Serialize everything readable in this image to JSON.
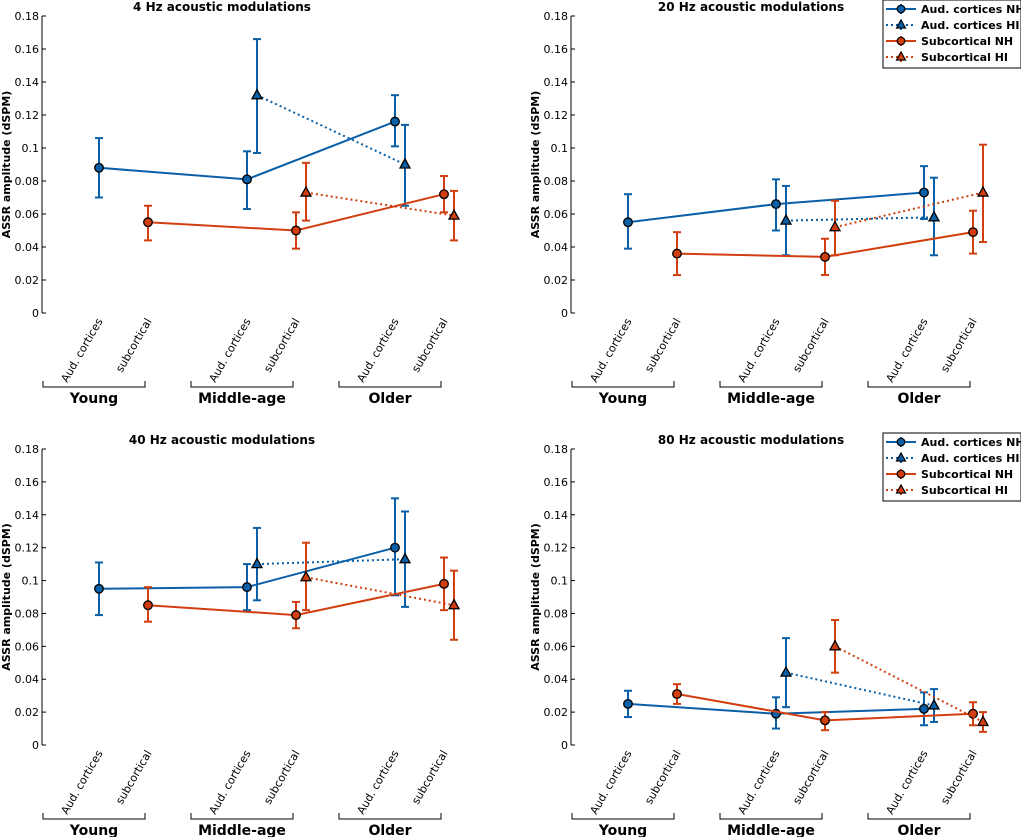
{
  "colors": {
    "nh_hi_aud": "#0a5fa6",
    "subcortical": "#d13e10",
    "axis": "#000000"
  },
  "category_labels": [
    "Aud. cortices",
    "subcortical"
  ],
  "group_labels": [
    "Young",
    "Middle-age",
    "Older"
  ],
  "legend_entries": [
    "Aud. cortices NH",
    "Aud. cortices HI",
    "Subcortical NH",
    "Subcortical HI"
  ],
  "ylabel": "ASSR amplitude (dSPM)",
  "chart_data": [
    {
      "type": "line",
      "title": "4 Hz acoustic modulations",
      "ylabel": "ASSR amplitude (dSPM)",
      "ylim": [
        0,
        0.18
      ],
      "yticks": [
        "0",
        "0.02",
        "0.04",
        "0.06",
        "0.08",
        "0.1",
        "0.12",
        "0.14",
        "0.16",
        "0.18"
      ],
      "groups": [
        "Young",
        "Middle-age",
        "Older"
      ],
      "legend": false,
      "series": [
        {
          "name": "Aud. cortices NH",
          "values": [
            0.088,
            0.081,
            0.116
          ],
          "err_low": [
            0.07,
            0.063,
            0.101
          ],
          "err_high": [
            0.106,
            0.098,
            0.132
          ]
        },
        {
          "name": "Aud. cortices HI",
          "values": [
            null,
            0.132,
            0.09
          ],
          "err_low": [
            null,
            0.097,
            0.065
          ],
          "err_high": [
            null,
            0.166,
            0.114
          ]
        },
        {
          "name": "Subcortical NH",
          "values": [
            0.055,
            0.05,
            0.072
          ],
          "err_low": [
            0.044,
            0.039,
            0.061
          ],
          "err_high": [
            0.065,
            0.061,
            0.083
          ]
        },
        {
          "name": "Subcortical HI",
          "values": [
            null,
            0.073,
            0.059
          ],
          "err_low": [
            null,
            0.056,
            0.044
          ],
          "err_high": [
            null,
            0.091,
            0.074
          ]
        }
      ]
    },
    {
      "type": "line",
      "title": "20 Hz acoustic modulations",
      "ylabel": "ASSR amplitude (dSPM)",
      "ylim": [
        0,
        0.18
      ],
      "yticks": [
        "0",
        "0.02",
        "0.04",
        "0.06",
        "0.08",
        "0.1",
        "0.12",
        "0.14",
        "0.16",
        "0.18"
      ],
      "groups": [
        "Young",
        "Middle-age",
        "Older"
      ],
      "legend": true,
      "series": [
        {
          "name": "Aud. cortices NH",
          "values": [
            0.055,
            0.066,
            0.073
          ],
          "err_low": [
            0.039,
            0.05,
            0.057
          ],
          "err_high": [
            0.072,
            0.081,
            0.089
          ]
        },
        {
          "name": "Aud. cortices HI",
          "values": [
            null,
            0.056,
            0.058
          ],
          "err_low": [
            null,
            0.035,
            0.035
          ],
          "err_high": [
            null,
            0.077,
            0.082
          ]
        },
        {
          "name": "Subcortical NH",
          "values": [
            0.036,
            0.034,
            0.049
          ],
          "err_low": [
            0.023,
            0.023,
            0.036
          ],
          "err_high": [
            0.049,
            0.045,
            0.062
          ]
        },
        {
          "name": "Subcortical HI",
          "values": [
            null,
            0.052,
            0.073
          ],
          "err_low": [
            null,
            0.035,
            0.043
          ],
          "err_high": [
            null,
            0.068,
            0.102
          ]
        }
      ]
    },
    {
      "type": "line",
      "title": "40 Hz acoustic modulations",
      "ylabel": "ASSR amplitude (dSPM)",
      "ylim": [
        0,
        0.18
      ],
      "yticks": [
        "0",
        "0.02",
        "0.04",
        "0.06",
        "0.08",
        "0.1",
        "0.12",
        "0.14",
        "0.16",
        "0.18"
      ],
      "groups": [
        "Young",
        "Middle-age",
        "Older"
      ],
      "legend": false,
      "series": [
        {
          "name": "Aud. cortices NH",
          "values": [
            0.095,
            0.096,
            0.12
          ],
          "err_low": [
            0.079,
            0.082,
            0.091
          ],
          "err_high": [
            0.111,
            0.11,
            0.15
          ]
        },
        {
          "name": "Aud. cortices HI",
          "values": [
            null,
            0.11,
            0.113
          ],
          "err_low": [
            null,
            0.088,
            0.084
          ],
          "err_high": [
            null,
            0.132,
            0.142
          ]
        },
        {
          "name": "Subcortical NH",
          "values": [
            0.085,
            0.079,
            0.098
          ],
          "err_low": [
            0.075,
            0.071,
            0.082
          ],
          "err_high": [
            0.096,
            0.087,
            0.114
          ]
        },
        {
          "name": "Subcortical HI",
          "values": [
            null,
            0.102,
            0.085
          ],
          "err_low": [
            null,
            0.082,
            0.064
          ],
          "err_high": [
            null,
            0.123,
            0.106
          ]
        }
      ]
    },
    {
      "type": "line",
      "title": "80 Hz acoustic modulations",
      "ylabel": "ASSR amplitude (dSPM)",
      "ylim": [
        0,
        0.18
      ],
      "yticks": [
        "0",
        "0.02",
        "0.04",
        "0.06",
        "0.08",
        "0.1",
        "0.12",
        "0.14",
        "0.16",
        "0.18"
      ],
      "groups": [
        "Young",
        "Middle-age",
        "Older"
      ],
      "legend": true,
      "series": [
        {
          "name": "Aud. cortices NH",
          "values": [
            0.025,
            0.019,
            0.022
          ],
          "err_low": [
            0.017,
            0.01,
            0.012
          ],
          "err_high": [
            0.033,
            0.029,
            0.032
          ]
        },
        {
          "name": "Aud. cortices HI",
          "values": [
            null,
            0.044,
            0.024
          ],
          "err_low": [
            null,
            0.023,
            0.014
          ],
          "err_high": [
            null,
            0.065,
            0.034
          ]
        },
        {
          "name": "Subcortical NH",
          "values": [
            0.031,
            0.015,
            0.019
          ],
          "err_low": [
            0.025,
            0.009,
            0.012
          ],
          "err_high": [
            0.037,
            0.02,
            0.026
          ]
        },
        {
          "name": "Subcortical HI",
          "values": [
            null,
            0.06,
            0.014
          ],
          "err_low": [
            null,
            0.044,
            0.008
          ],
          "err_high": [
            null,
            0.076,
            0.02
          ]
        }
      ]
    }
  ]
}
